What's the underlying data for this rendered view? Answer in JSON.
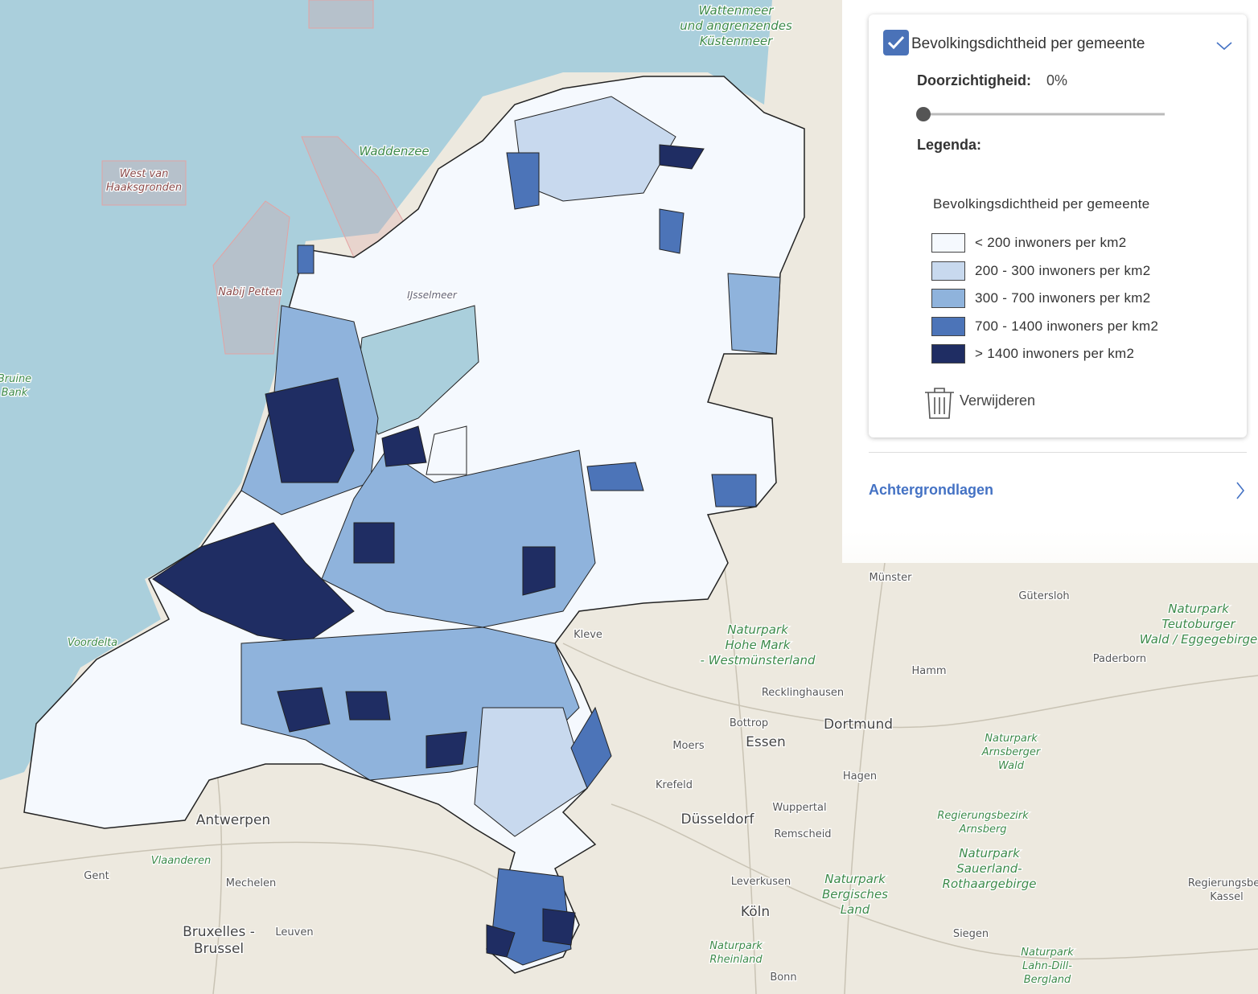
{
  "layer_panel": {
    "layer_title": "Bevolkingsdichtheid per gemeente",
    "opacity_label": "Doorzichtigheid:",
    "opacity_value": "0%",
    "legend_heading": "Legenda:",
    "legend": {
      "title": "Bevolkingsdichtheid per gemeente",
      "items": [
        {
          "label": "< 200 inwoners per km2",
          "color": "#f5f9fe"
        },
        {
          "label": "200 - 300 inwoners per km2",
          "color": "#c8d9ee"
        },
        {
          "label": "300 - 700 inwoners per km2",
          "color": "#8fb3dc"
        },
        {
          "label": "700 - 1400 inwoners per km2",
          "color": "#4c74b8"
        },
        {
          "label": "> 1400 inwoners per km2",
          "color": "#1f2d63"
        }
      ]
    },
    "remove": "Verwijderen"
  },
  "background_layers": "Achtergrondlagen",
  "map_labels": [
    [
      "Wattenmeer",
      "und angrenzendes",
      "Küstenmeer"
    ],
    [
      "Waddenzee"
    ],
    [
      "West van",
      "Haaksgronden"
    ],
    [
      "Nabij Petten"
    ],
    [
      "IJsselmeer"
    ],
    [
      "Bruine",
      "Bank"
    ],
    [
      "Voordelta"
    ],
    [
      "Münster"
    ],
    [
      "Gütersloh"
    ],
    [
      "Naturpark",
      "Teutoburger",
      "Wald / Eggegebirge"
    ],
    [
      "Naturpark",
      "Hohe Mark",
      "- Westmünsterland"
    ],
    [
      "Kleve"
    ],
    [
      "Hamm"
    ],
    [
      "Paderborn"
    ],
    [
      "Recklinghausen"
    ],
    [
      "Bottrop"
    ],
    [
      "Dortmund"
    ],
    [
      "Moers"
    ],
    [
      "Essen"
    ],
    [
      "Naturpark",
      "Arnsberger",
      "Wald"
    ],
    [
      "Hagen"
    ],
    [
      "Krefeld"
    ],
    [
      "Wuppertal"
    ],
    [
      "Regierungsbezirk",
      "Arnsberg"
    ],
    [
      "Düsseldorf"
    ],
    [
      "Remscheid"
    ],
    [
      "Antwerpen"
    ],
    [
      "Vlaanderen"
    ],
    [
      "Gent"
    ],
    [
      "Mechelen"
    ],
    [
      "Leverkusen"
    ],
    [
      "Naturpark",
      "Bergisches",
      "Land"
    ],
    [
      "Naturpark",
      "Sauerland-",
      "Rothaargebirge"
    ],
    [
      "Regierungsbez",
      "Kassel"
    ],
    [
      "Köln"
    ],
    [
      "Bruxelles -",
      "Brussel"
    ],
    [
      "Leuven"
    ],
    [
      "Siegen"
    ],
    [
      "Naturpark",
      "Rheinland"
    ],
    [
      "Bonn"
    ],
    [
      "Naturpark",
      "Lahn-Dill-",
      "Bergland"
    ]
  ]
}
